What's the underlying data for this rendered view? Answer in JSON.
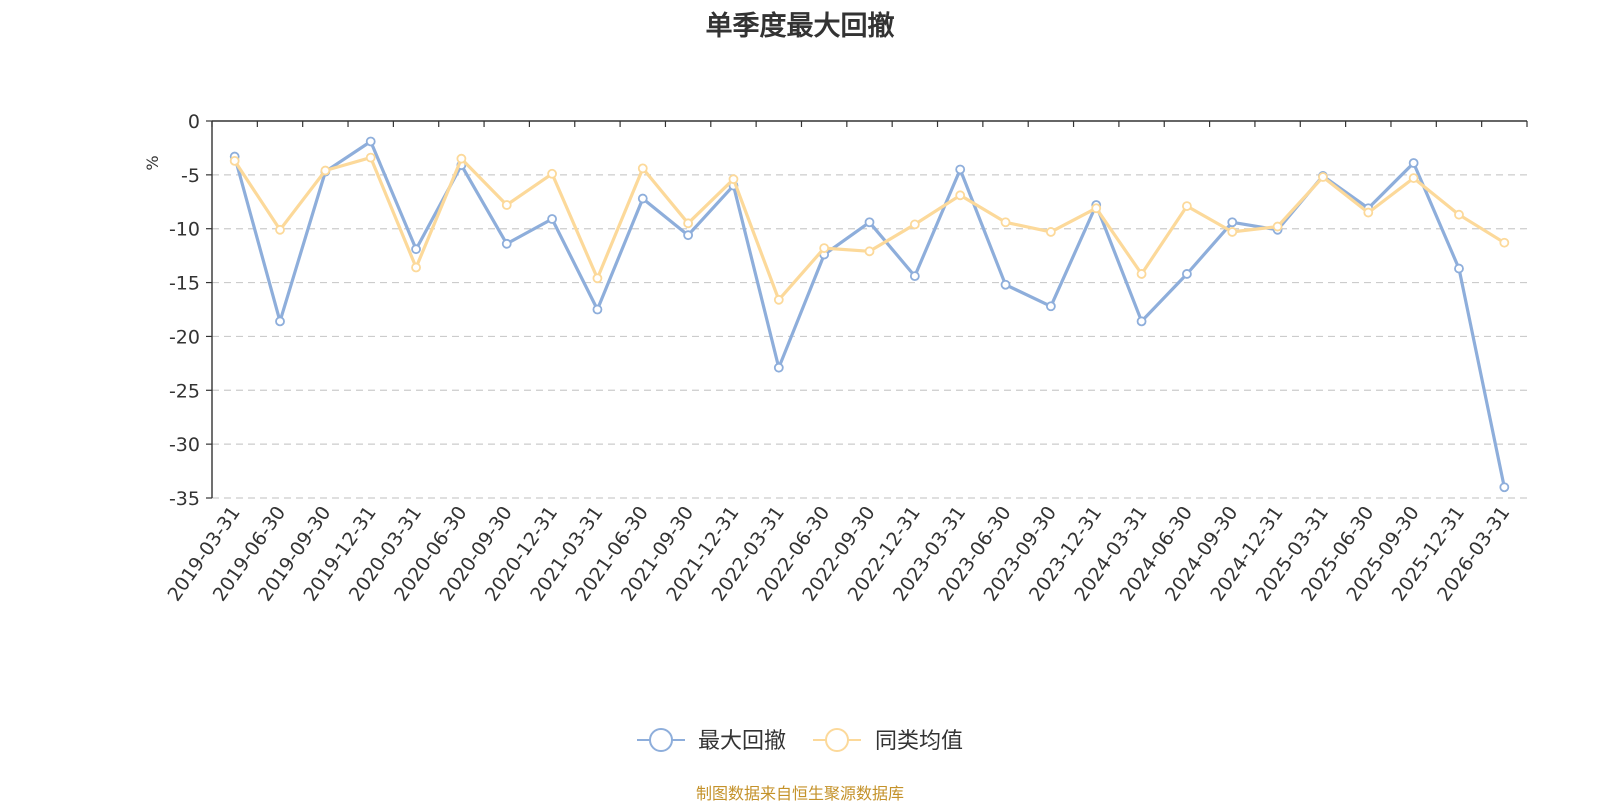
{
  "colors": {
    "series_1": "#8eaedb",
    "series_2": "#fcd99a",
    "grid": "#cccccc",
    "axis": "#333333",
    "unit_label": "#e8272a",
    "footer": "#c4922a",
    "title": "#333333"
  },
  "chart_data": {
    "type": "line",
    "title": "单季度最大回撤",
    "ylabel": "%",
    "ylim": [
      -35,
      0
    ],
    "yticks": [
      0,
      -5,
      -10,
      -15,
      -20,
      -25,
      -30,
      -35
    ],
    "grid": true,
    "legend_position": "bottom-center",
    "x": [
      "2019-03-31",
      "2019-06-30",
      "2019-09-30",
      "2019-12-31",
      "2020-03-31",
      "2020-06-30",
      "2020-09-30",
      "2020-12-31",
      "2021-03-31",
      "2021-06-30",
      "2021-09-30",
      "2021-12-31",
      "2022-03-31",
      "2022-06-30",
      "2022-09-30",
      "2022-12-31",
      "2023-03-31",
      "2023-06-30",
      "2023-09-30",
      "2023-12-31",
      "2024-03-31",
      "2024-06-30",
      "2024-09-30",
      "2024-12-31",
      "2025-03-31",
      "2025-06-30",
      "2025-09-30",
      "2025-12-31",
      "2026-03-31"
    ],
    "series": [
      {
        "name": "最大回撤",
        "values": [
          -3.3,
          -18.6,
          -4.7,
          -1.9,
          -11.9,
          -4.1,
          -11.4,
          -9.1,
          -17.5,
          -7.2,
          -10.6,
          -6.0,
          -22.9,
          -12.4,
          -9.4,
          -14.4,
          -4.5,
          -15.2,
          -17.2,
          -7.8,
          -18.6,
          -14.2,
          -9.4,
          -10.1,
          -5.1,
          -8.1,
          -3.9,
          -13.7,
          -34.0
        ]
      },
      {
        "name": "同类均值",
        "values": [
          -3.7,
          -10.1,
          -4.6,
          -3.4,
          -13.6,
          -3.5,
          -7.8,
          -4.9,
          -14.6,
          -4.4,
          -9.5,
          -5.4,
          -16.6,
          -11.8,
          -12.1,
          -9.6,
          -6.9,
          -9.4,
          -10.3,
          -8.1,
          -14.2,
          -7.9,
          -10.3,
          -9.8,
          -5.2,
          -8.5,
          -5.3,
          -8.7,
          -11.3
        ]
      }
    ]
  },
  "footer": {
    "source_text": "制图数据来自恒生聚源数据库"
  }
}
